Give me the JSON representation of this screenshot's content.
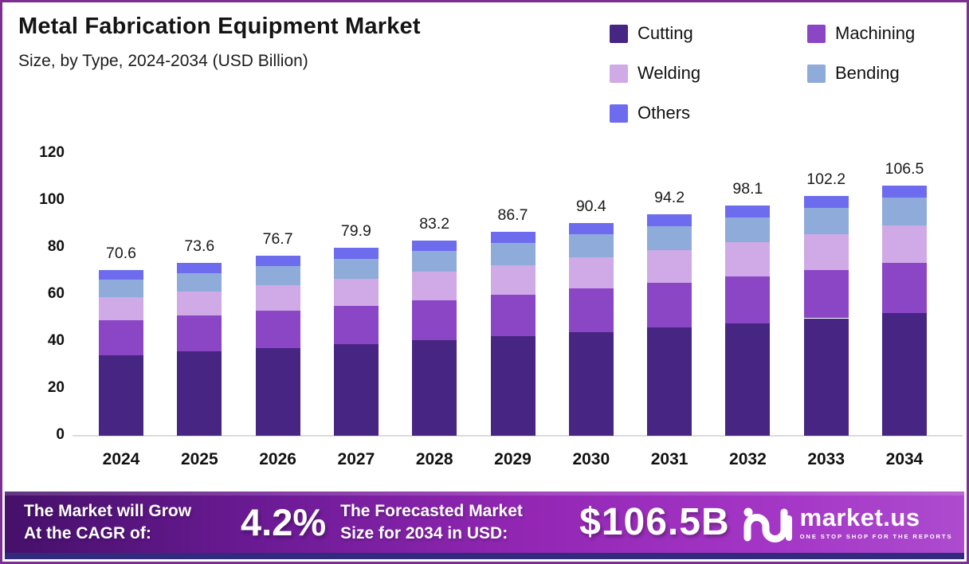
{
  "header": {
    "title": "Metal Fabrication Equipment Market",
    "subtitle": "Size, by Type, 2024-2034 (USD Billion)"
  },
  "chart_data": {
    "type": "bar",
    "stacked": true,
    "title": "Metal Fabrication Equipment Market Size, by Type, 2024-2034 (USD Billion)",
    "categories": [
      "2024",
      "2025",
      "2026",
      "2027",
      "2028",
      "2029",
      "2030",
      "2031",
      "2032",
      "2033",
      "2034"
    ],
    "series": [
      {
        "name": "Cutting",
        "color": "#472582",
        "values": [
          34.4,
          35.9,
          37.4,
          39.0,
          40.6,
          42.3,
          44.2,
          46.0,
          47.9,
          50.0,
          52.1
        ]
      },
      {
        "name": "Machining",
        "color": "#8b46c6",
        "values": [
          14.7,
          15.3,
          15.8,
          16.4,
          17.1,
          17.7,
          18.4,
          19.1,
          19.8,
          20.5,
          21.3
        ]
      },
      {
        "name": "Welding",
        "color": "#cfaae6",
        "values": [
          9.8,
          10.3,
          10.8,
          11.4,
          12.0,
          12.6,
          13.2,
          13.9,
          14.6,
          15.3,
          16.1
        ]
      },
      {
        "name": "Bending",
        "color": "#8fabd9",
        "values": [
          7.5,
          7.8,
          8.3,
          8.6,
          9.0,
          9.4,
          9.8,
          10.3,
          10.7,
          11.2,
          11.7
        ]
      },
      {
        "name": "Others",
        "color": "#6e6cee",
        "values": [
          4.2,
          4.3,
          4.4,
          4.5,
          4.5,
          4.7,
          4.8,
          4.9,
          5.1,
          5.2,
          5.3
        ]
      }
    ],
    "totals": [
      70.6,
      73.6,
      76.7,
      79.9,
      83.2,
      86.7,
      90.4,
      94.2,
      98.1,
      102.2,
      106.5
    ],
    "xlabel": "",
    "ylabel": "",
    "ylim": [
      0,
      120
    ],
    "yticks": [
      0,
      20,
      40,
      60,
      80,
      100,
      120
    ],
    "grid": false,
    "legend_position": "top-right"
  },
  "footer": {
    "left_line1": "The Market will Grow",
    "left_line2": "At the CAGR of:",
    "cagr": "4.2%",
    "mid_line1": "The Forecasted Market",
    "mid_line2": "Size for 2034 in USD:",
    "forecast": "$106.5B",
    "brand": "market.us",
    "tagline": "ONE STOP SHOP FOR THE REPORTS"
  },
  "colors": {
    "border": "#7c2f90",
    "axis_line": "#dcdcdc",
    "footer_gradient_start": "#45106a",
    "footer_gradient_end": "#ad4bce",
    "footer_bottom_strip": "#322a7d",
    "text": "#111111"
  }
}
